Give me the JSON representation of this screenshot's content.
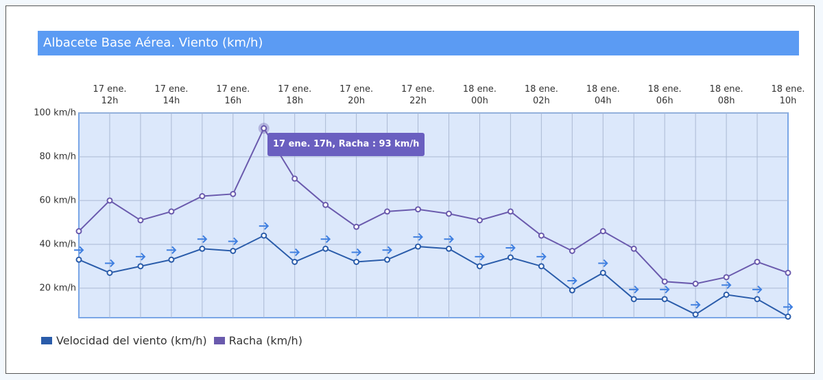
{
  "chart_data": {
    "type": "line",
    "title": "Albacete Base Aérea. Viento (km/h)",
    "categories": [
      null,
      "17 ene.\n12h",
      null,
      "17 ene.\n14h",
      null,
      "17 ene.\n16h",
      null,
      "17 ene.\n18h",
      null,
      "17 ene.\n20h",
      null,
      "17 ene.\n22h",
      null,
      "18 ene.\n00h",
      null,
      "18 ene.\n02h",
      null,
      "18 ene.\n04h",
      null,
      "18 ene.\n06h",
      null,
      "18 ene.\n08h",
      null,
      "18 ene.\n10h"
    ],
    "series": [
      {
        "name": "Velocidad del viento (km/h)",
        "color": "#2a5caa",
        "values": [
          33,
          27,
          30,
          33,
          38,
          37,
          44,
          32,
          38,
          32,
          33,
          39,
          38,
          30,
          34,
          30,
          19,
          27,
          15,
          15,
          8,
          17,
          15,
          7
        ]
      },
      {
        "name": "Racha (km/h)",
        "color": "#6a5aad",
        "values": [
          46,
          60,
          51,
          55,
          62,
          63,
          93,
          70,
          58,
          48,
          55,
          56,
          54,
          51,
          55,
          44,
          37,
          46,
          38,
          23,
          22,
          25,
          32,
          27
        ]
      }
    ],
    "ylim": [
      6.5,
      100
    ],
    "yticks": [
      {
        "value": 20,
        "label": "20 km/h"
      },
      {
        "value": 40,
        "label": "40 km/h"
      },
      {
        "value": 60,
        "label": "60 km/h"
      },
      {
        "value": 80,
        "label": "80 km/h"
      },
      {
        "value": 100,
        "label": "100 km/h"
      }
    ],
    "grid": true,
    "tooltip": "17 ene. 17h, Racha : 93 km/h"
  }
}
